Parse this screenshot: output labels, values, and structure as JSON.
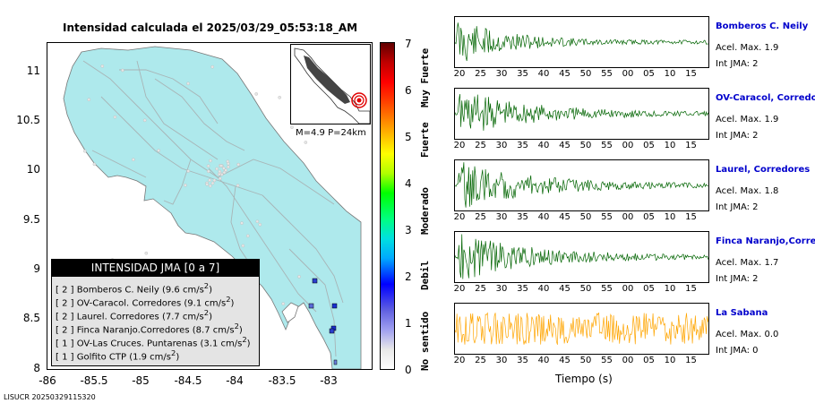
{
  "map": {
    "title": "Intensidad calculada el 2025/03/29_05:53:18_AM",
    "y_ticks": [
      "11",
      "10.5",
      "10",
      "9.5",
      "9",
      "8.5",
      "8"
    ],
    "x_ticks": [
      "-86",
      "-85.5",
      "-85",
      "-84.5",
      "-84",
      "-83.5",
      "-83"
    ],
    "land_color": "#aee9ec",
    "inset_label": "M=4.9 P=24km",
    "footer": "LISUCR 20250329115320"
  },
  "legend": {
    "title": "INTENSIDAD JMA [0 a 7]",
    "rows": [
      {
        "level": "[ 2 ]",
        "name": "Bomberos C. Neily",
        "value": "(9.6 cm/s",
        "sup": "2",
        "close": ")"
      },
      {
        "level": "[ 2 ]",
        "name": "OV-Caracol. Corredores",
        "value": "(9.1 cm/s",
        "sup": "2",
        "close": ")"
      },
      {
        "level": "[ 2 ]",
        "name": "Laurel. Corredores",
        "value": "(7.7 cm/s",
        "sup": "2",
        "close": ")"
      },
      {
        "level": "[ 2 ]",
        "name": "Finca Naranjo.Corredores",
        "value": "(8.7 cm/s",
        "sup": "2",
        "close": ")"
      },
      {
        "level": "[ 1 ]",
        "name": "OV-Las Cruces. Puntarenas",
        "value": "(3.1 cm/s",
        "sup": "2",
        "close": ")"
      },
      {
        "level": "[ 1 ]",
        "name": "Golfito CTP",
        "value": "(1.9 cm/s",
        "sup": "2",
        "close": ")"
      }
    ]
  },
  "colorbar": {
    "ticks": [
      "7",
      "6",
      "5",
      "4",
      "3",
      "2",
      "1",
      "0"
    ],
    "categories": [
      "Muy Fuerte",
      "Fuerte",
      "Moderado",
      "Debil",
      "No sentido"
    ]
  },
  "waveforms": {
    "x_ticks": [
      "20",
      "25",
      "30",
      "35",
      "40",
      "45",
      "50",
      "55",
      "00",
      "05",
      "10",
      "15"
    ],
    "xlabel": "Tiempo (s)",
    "stations": [
      {
        "name": "Bomberos C. Neily",
        "acel": "Acel. Max. 1.9",
        "int": "Int JMA: 2",
        "color": "#006400"
      },
      {
        "name": "OV-Caracol, Corredores",
        "acel": "Acel. Max. 1.9",
        "int": "Int JMA: 2",
        "color": "#006400"
      },
      {
        "name": "Laurel, Corredores",
        "acel": "Acel. Max. 1.8",
        "int": "Int JMA: 2",
        "color": "#006400"
      },
      {
        "name": "Finca Naranjo,Corredores",
        "acel": "Acel. Max. 1.7",
        "int": "Int JMA: 2",
        "color": "#006400"
      },
      {
        "name": "La Sabana",
        "acel": "Acel. Max. 0.0",
        "int": "Int JMA: 0",
        "color": "#ffa500"
      }
    ]
  }
}
